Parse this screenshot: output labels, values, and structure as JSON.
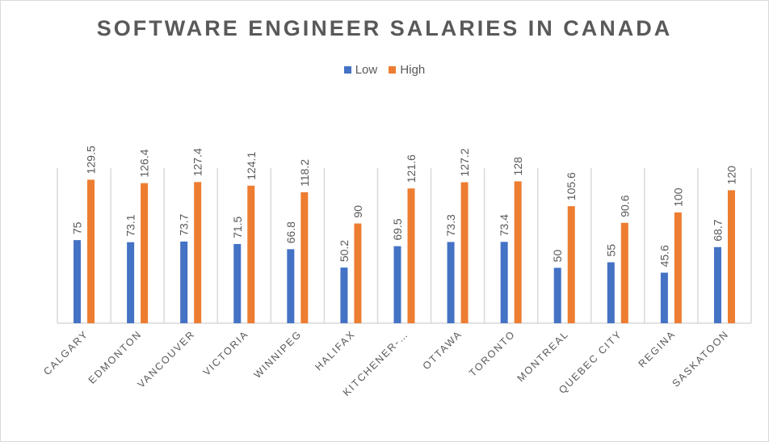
{
  "chart_data": {
    "type": "bar",
    "title": "SOFTWARE ENGINEER SALARIES IN CANADA",
    "categories": [
      "CALGARY",
      "EDMONTON",
      "VANCOUVER",
      "VICTORIA",
      "WINNIPEG",
      "HALIFAX",
      "KITCHENER-…",
      "OTTAWA",
      "TORONTO",
      "MONTREAL",
      "QUEBEC CITY",
      "REGINA",
      "SASKATOON"
    ],
    "series": [
      {
        "name": "Low",
        "color": "#4472c4",
        "values": [
          75,
          73.1,
          73.7,
          71.5,
          66.8,
          50.2,
          69.5,
          73.3,
          73.4,
          50,
          55,
          45.6,
          68.7
        ]
      },
      {
        "name": "High",
        "color": "#ed7d31",
        "values": [
          129.5,
          126.4,
          127.4,
          124.1,
          118.2,
          90,
          121.6,
          127.2,
          128,
          105.6,
          90.6,
          100,
          120
        ]
      }
    ],
    "ylim": [
      0,
      140
    ],
    "legend": "top",
    "grid": "vertical category separators",
    "data_labels": true
  }
}
